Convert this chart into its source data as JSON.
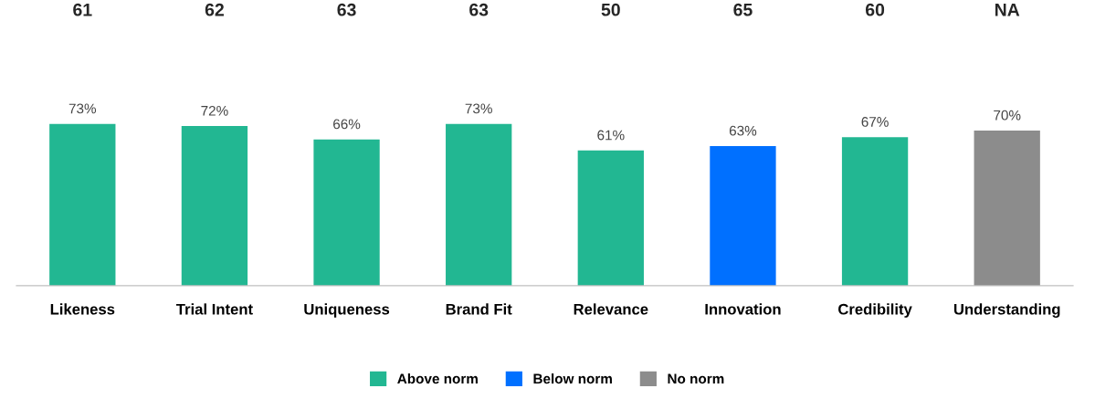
{
  "chart_data": {
    "type": "bar",
    "categories": [
      "Likeness",
      "Trial Intent",
      "Uniqueness",
      "Brand Fit",
      "Relevance",
      "Innovation",
      "Credibility",
      "Understanding"
    ],
    "series": [
      {
        "name": "Above norm",
        "color": "#22b792",
        "values": [
          73,
          72,
          66,
          73,
          61,
          null,
          67,
          null
        ],
        "value_labels": [
          "73%",
          "72%",
          "66%",
          "73%",
          "61%",
          null,
          "67%",
          null
        ]
      },
      {
        "name": "Below norm",
        "color": "#0070ff",
        "values": [
          null,
          null,
          null,
          null,
          null,
          63,
          null,
          null
        ],
        "value_labels": [
          null,
          null,
          null,
          null,
          null,
          "63%",
          null,
          null
        ]
      },
      {
        "name": "No norm",
        "color": "#8c8c8c",
        "values": [
          null,
          null,
          null,
          null,
          null,
          null,
          null,
          70
        ],
        "value_labels": [
          null,
          null,
          null,
          null,
          null,
          null,
          null,
          "70%"
        ]
      }
    ],
    "annotations": [
      "61",
      "62",
      "63",
      "63",
      "50",
      "65",
      "60",
      "NA"
    ],
    "legend": "bottom",
    "grid": false
  }
}
